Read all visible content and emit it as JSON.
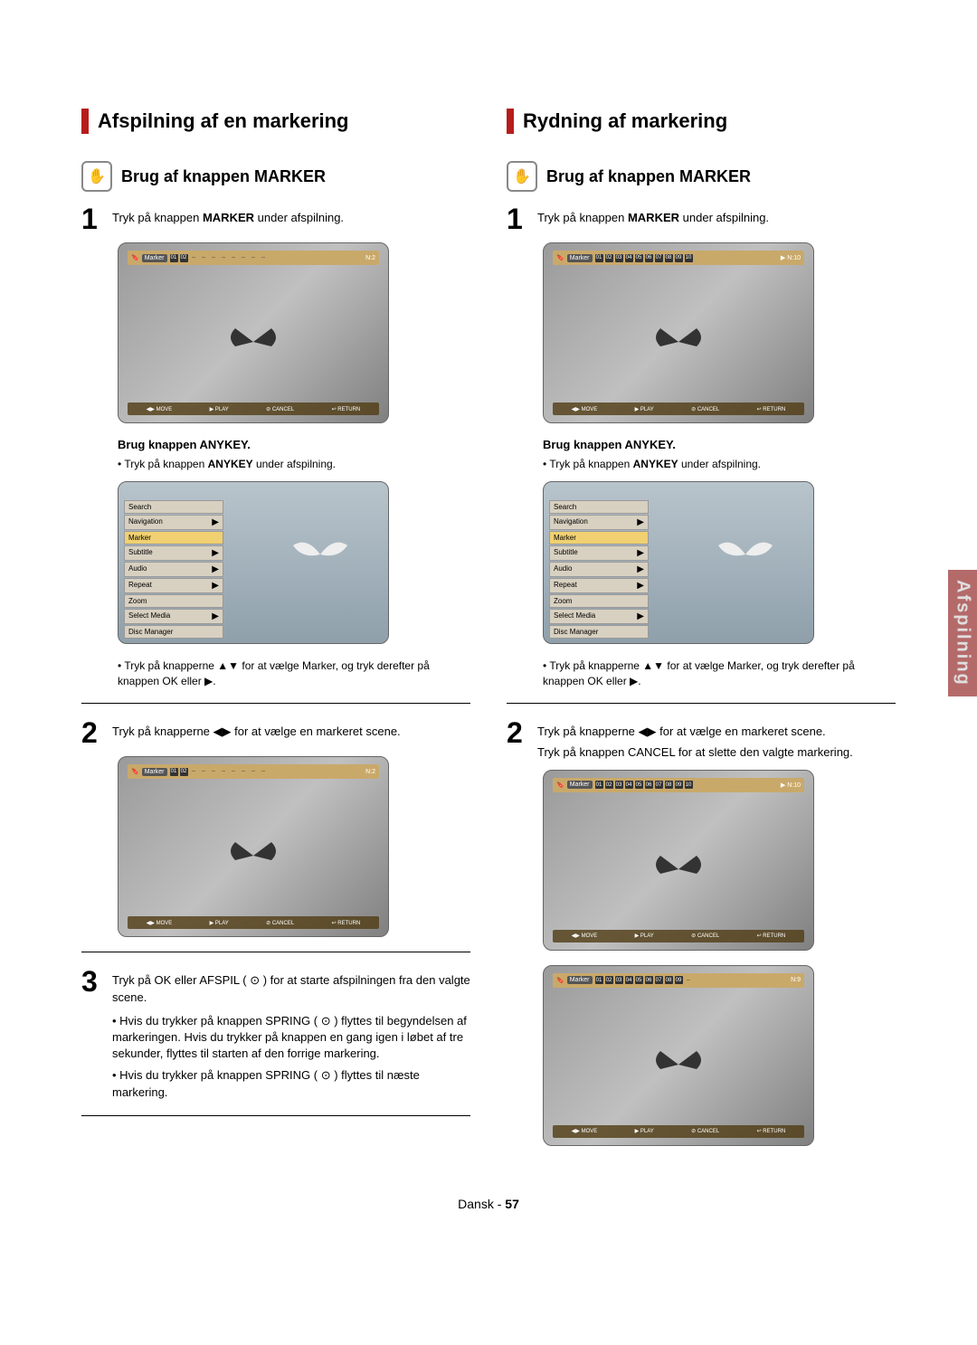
{
  "left": {
    "title": "Afspilning af en markering",
    "subtitle": "Brug af knappen MARKER",
    "step1_pre": "Tryk på knappen ",
    "step1_bold": "MARKER",
    "step1_post": " under afspilning.",
    "anykey_title": "Brug knappen ANYKEY.",
    "anykey_bullet_pre": "Tryk på knappen ",
    "anykey_bullet_bold": "ANYKEY",
    "anykey_bullet_post": " under afspilning.",
    "arrows_bullet": "Tryk på knapperne ▲▼ for at vælge Marker, og tryk derefter på knappen OK eller ▶.",
    "step2": "Tryk på knapperne ◀▶ for at vælge en markeret scene.",
    "step3_line1": "Tryk på OK eller AFSPIL ( ⊙ ) for at starte afspilningen fra den valgte scene.",
    "step3_b1": "Hvis du trykker på knappen SPRING ( ⊙ ) flyttes til begyndelsen af markeringen. Hvis du trykker på knappen en gang igen i løbet af tre sekunder, flyttes til starten af den forrige markering.",
    "step3_b2": "Hvis du trykker på knappen SPRING ( ⊙ ) flyttes til næste markering.",
    "marker_label": "Marker",
    "marker_count_n2": "N:2",
    "slots_partial": [
      "01",
      "02",
      "--",
      "--",
      "--",
      "--",
      "--",
      "--",
      "--",
      "--"
    ],
    "bottom_items": [
      "◀▶ MOVE",
      "▶ PLAY",
      "⊘ CANCEL",
      "↩ RETURN"
    ],
    "menu_items": [
      "Search",
      "Navigation",
      "Marker",
      "Subtitle",
      "Audio",
      "Repeat",
      "Zoom",
      "Select Media",
      "Disc Manager"
    ]
  },
  "right": {
    "title": "Rydning af markering",
    "subtitle": "Brug af knappen MARKER",
    "step1_pre": "Tryk på knappen ",
    "step1_bold": "MARKER",
    "step1_post": " under afspilning.",
    "anykey_title": "Brug knappen ANYKEY.",
    "anykey_bullet_pre": "Tryk på knappen ",
    "anykey_bullet_bold": "ANYKEY",
    "anykey_bullet_post": " under afspilning.",
    "arrows_bullet": "Tryk på knapperne ▲▼ for at vælge Marker, og tryk derefter på knappen OK eller ▶.",
    "step2_line1": "Tryk på knapperne ◀▶ for at vælge en markeret scene.",
    "step2_line2": "Tryk på knappen CANCEL for at slette den valgte markering.",
    "marker_label": "Marker",
    "marker_count_n10": "▶ N:10",
    "marker_count_n9": "N:9",
    "slots_full": [
      "01",
      "02",
      "03",
      "04",
      "05",
      "06",
      "07",
      "08",
      "09",
      "10"
    ],
    "slots_nine": [
      "01",
      "02",
      "03",
      "04",
      "05",
      "06",
      "07",
      "08",
      "09",
      "--"
    ],
    "bottom_items": [
      "◀▶ MOVE",
      "▶ PLAY",
      "⊘ CANCEL",
      "↩ RETURN"
    ],
    "menu_items": [
      "Search",
      "Navigation",
      "Marker",
      "Subtitle",
      "Audio",
      "Repeat",
      "Zoom",
      "Select Media",
      "Disc Manager"
    ]
  },
  "side_tab": "Afspilning",
  "footer_lang": "Dansk",
  "footer_page": "57",
  "colors": {
    "accent_bar": "#b71c1c",
    "side_tab_bg": "#b56a6a",
    "marker_bar_bg": "#c9a96a"
  }
}
